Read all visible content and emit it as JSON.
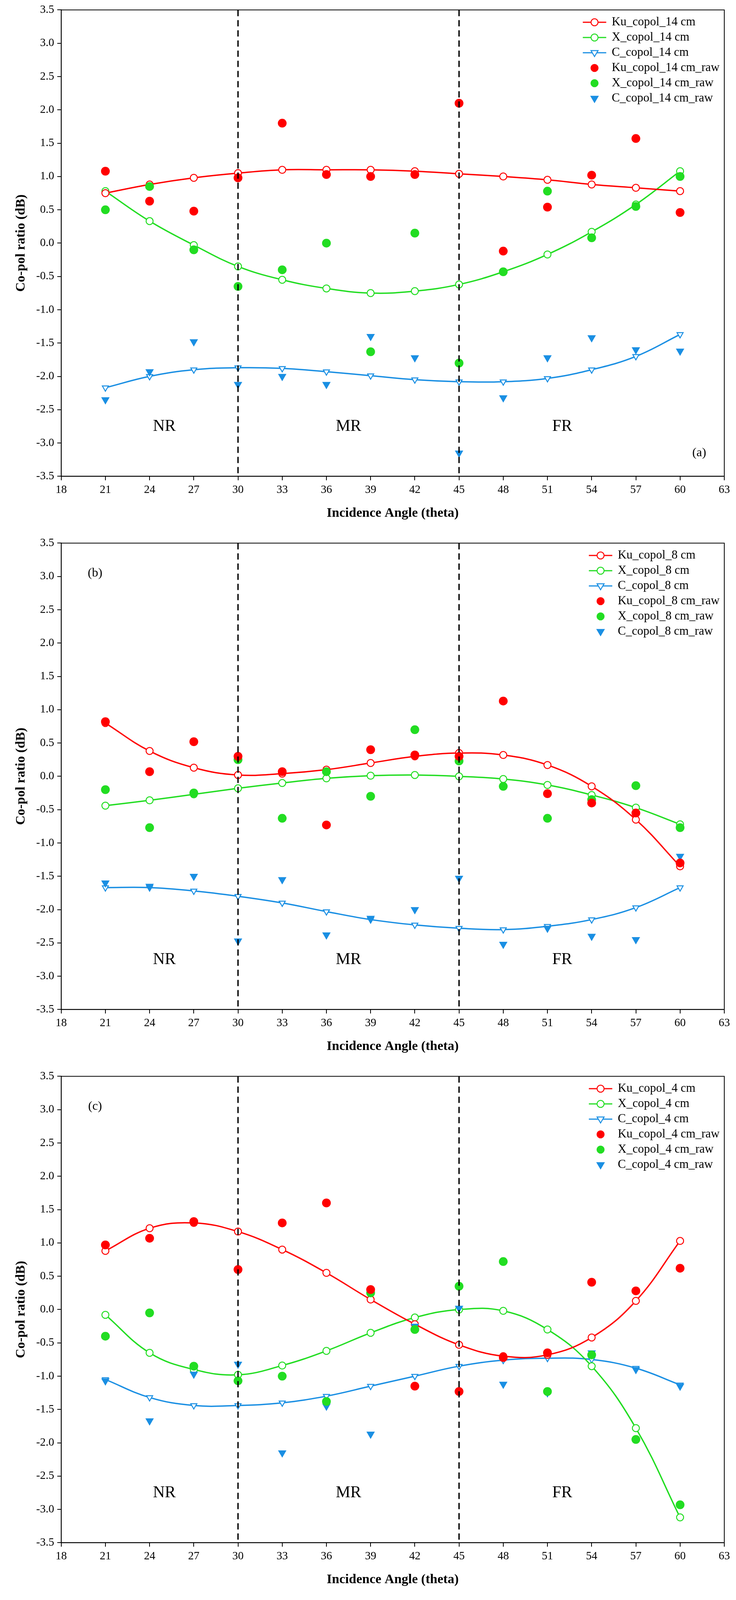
{
  "chart_data": [
    {
      "type": "line",
      "x_label": "Incidence Angle (theta)",
      "y_label": "Co-pol ratio (dB)",
      "x": [
        21,
        24,
        27,
        30,
        33,
        36,
        39,
        42,
        45,
        48,
        51,
        54,
        57,
        60
      ],
      "xlim": [
        18,
        63
      ],
      "xticks": [
        18,
        21,
        24,
        27,
        30,
        33,
        36,
        39,
        42,
        45,
        48,
        51,
        54,
        57,
        60,
        63
      ],
      "ylim": [
        -3.5,
        3.5
      ],
      "yticks": [
        -3.5,
        {
          "value": -3,
          "label": "-3.0"
        },
        -2.5,
        {
          "value": -2,
          "label": "-2.0"
        },
        -1.5,
        {
          "value": -1,
          "label": "-1.0"
        },
        -0.5,
        {
          "value": 0,
          "label": "0.0"
        },
        0.5,
        {
          "value": 1,
          "label": "1.0"
        },
        1.5,
        {
          "value": 2,
          "label": "2.0"
        },
        2.5,
        {
          "value": 3,
          "label": "3.0"
        },
        3.5
      ],
      "grid": false,
      "legend": "upper right",
      "vlines": [
        30,
        45
      ],
      "annotations": [
        {
          "text": "NR",
          "x": 25,
          "y": -2.75
        },
        {
          "text": "MR",
          "x": 37.5,
          "y": -2.75
        },
        {
          "text": "FR",
          "x": 52,
          "y": -2.75
        },
        {
          "text": "(a)",
          "x": 61.3,
          "y": -3.15
        }
      ],
      "series": [
        {
          "name": "Ku_copol_14 cm",
          "type": "line",
          "color": "#ff0000",
          "marker": "open_circle",
          "line_style": "solid",
          "values": [
            0.75,
            0.88,
            0.98,
            1.05,
            1.1,
            1.1,
            1.1,
            1.08,
            1.04,
            1.0,
            0.95,
            0.88,
            0.83,
            0.78
          ]
        },
        {
          "name": "X_copol_14 cm",
          "type": "line",
          "color": "#22dd22",
          "marker": "open_circle",
          "line_style": "solid",
          "values": [
            0.78,
            0.33,
            -0.03,
            -0.35,
            -0.55,
            -0.68,
            -0.75,
            -0.72,
            -0.62,
            -0.43,
            -0.17,
            0.17,
            0.58,
            1.08
          ]
        },
        {
          "name": "C_copol_14 cm",
          "type": "line",
          "color": "#1a8fe3",
          "marker": "open_triangle_down",
          "line_style": "solid",
          "values": [
            -2.17,
            -2.0,
            -1.9,
            -1.87,
            -1.88,
            -1.93,
            -1.99,
            -2.05,
            -2.08,
            -2.08,
            -2.03,
            -1.9,
            -1.7,
            -1.37
          ]
        },
        {
          "name": "Ku_copol_14 cm_raw",
          "type": "scatter",
          "color": "#ff0000",
          "marker": "filled_circle",
          "line_style": "none",
          "values": [
            1.08,
            0.63,
            0.48,
            0.98,
            1.8,
            1.03,
            1.0,
            1.03,
            2.1,
            -0.12,
            0.54,
            1.02,
            1.57,
            0.46
          ]
        },
        {
          "name": "X_copol_14 cm_raw",
          "type": "scatter",
          "color": "#22dd22",
          "marker": "filled_circle",
          "line_style": "none",
          "values": [
            0.5,
            0.85,
            -0.1,
            -0.65,
            -0.4,
            0.0,
            -1.63,
            0.15,
            -1.8,
            -0.43,
            0.78,
            0.08,
            0.55,
            1.0
          ]
        },
        {
          "name": "C_copol_14 cm_raw",
          "type": "scatter",
          "color": "#1a8fe3",
          "marker": "filled_triangle_down",
          "line_style": "none",
          "values": [
            -2.35,
            -1.93,
            -1.48,
            -2.12,
            -2.0,
            -2.12,
            -1.4,
            -1.72,
            -3.15,
            -2.32,
            -1.72,
            -1.42,
            -1.6,
            -1.62
          ]
        }
      ]
    },
    {
      "type": "line",
      "x_label": "Incidence Angle (theta)",
      "y_label": "Co-pol ratio (dB)",
      "x": [
        21,
        24,
        27,
        30,
        33,
        36,
        39,
        42,
        45,
        48,
        51,
        54,
        57,
        60
      ],
      "xlim": [
        18,
        63
      ],
      "xticks": [
        18,
        21,
        24,
        27,
        30,
        33,
        36,
        39,
        42,
        45,
        48,
        51,
        54,
        57,
        60,
        63
      ],
      "ylim": [
        -3.5,
        3.5
      ],
      "yticks": [
        -3.5,
        {
          "value": -3,
          "label": "-3.0"
        },
        -2.5,
        {
          "value": -2,
          "label": "-2.0"
        },
        -1.5,
        {
          "value": -1,
          "label": "-1.0"
        },
        -0.5,
        {
          "value": 0,
          "label": "0.0"
        },
        0.5,
        {
          "value": 1,
          "label": "1.0"
        },
        1.5,
        {
          "value": 2,
          "label": "2.0"
        },
        2.5,
        {
          "value": 3,
          "label": "3.0"
        },
        3.5
      ],
      "grid": false,
      "legend": "upper right",
      "vlines": [
        30,
        45
      ],
      "annotations": [
        {
          "text": "NR",
          "x": 25,
          "y": -2.75
        },
        {
          "text": "MR",
          "x": 37.5,
          "y": -2.75
        },
        {
          "text": "FR",
          "x": 52,
          "y": -2.75
        },
        {
          "text": "(b)",
          "x": 20.3,
          "y": 3.05
        }
      ],
      "series": [
        {
          "name": "Ku_copol_8 cm",
          "type": "line",
          "color": "#ff0000",
          "marker": "open_circle",
          "line_style": "solid",
          "values": [
            0.8,
            0.38,
            0.13,
            0.02,
            0.04,
            0.1,
            0.2,
            0.3,
            0.35,
            0.32,
            0.17,
            -0.15,
            -0.65,
            -1.35
          ]
        },
        {
          "name": "X_copol_8 cm",
          "type": "line",
          "color": "#22dd22",
          "marker": "open_circle",
          "line_style": "solid",
          "values": [
            -0.44,
            -0.36,
            -0.27,
            -0.18,
            -0.1,
            -0.03,
            0.01,
            0.02,
            0.0,
            -0.04,
            -0.13,
            -0.28,
            -0.47,
            -0.72
          ]
        },
        {
          "name": "C_copol_8 cm",
          "type": "line",
          "color": "#1a8fe3",
          "marker": "open_triangle_down",
          "line_style": "solid",
          "values": [
            -1.67,
            -1.67,
            -1.72,
            -1.8,
            -1.9,
            -2.03,
            -2.15,
            -2.23,
            -2.28,
            -2.3,
            -2.25,
            -2.15,
            -1.97,
            -1.67
          ]
        },
        {
          "name": "Ku_copol_8 cm_raw",
          "type": "scatter",
          "color": "#ff0000",
          "marker": "filled_circle",
          "line_style": "none",
          "values": [
            0.82,
            0.07,
            0.52,
            0.3,
            0.07,
            -0.73,
            0.4,
            0.32,
            0.3,
            1.13,
            -0.26,
            -0.4,
            -0.55,
            -1.3
          ]
        },
        {
          "name": "X_copol_8 cm_raw",
          "type": "scatter",
          "color": "#22dd22",
          "marker": "filled_circle",
          "line_style": "none",
          "values": [
            -0.2,
            -0.77,
            -0.25,
            0.25,
            -0.63,
            0.07,
            -0.3,
            0.7,
            0.23,
            -0.15,
            -0.63,
            -0.35,
            -0.14,
            -0.77
          ]
        },
        {
          "name": "C_copol_8 cm_raw",
          "type": "scatter",
          "color": "#1a8fe3",
          "marker": "filled_triangle_down",
          "line_style": "none",
          "values": [
            -1.6,
            -1.65,
            -1.5,
            -2.47,
            -1.55,
            -2.38,
            -2.13,
            -2.0,
            -1.53,
            -2.52,
            -2.28,
            -2.4,
            -2.45,
            -1.2
          ]
        }
      ]
    },
    {
      "type": "line",
      "x_label": "Incidence Angle (theta)",
      "y_label": "Co-pol ratio (dB)",
      "x": [
        21,
        24,
        27,
        30,
        33,
        36,
        39,
        42,
        45,
        48,
        51,
        54,
        57,
        60
      ],
      "xlim": [
        18,
        63
      ],
      "xticks": [
        18,
        21,
        24,
        27,
        30,
        33,
        36,
        39,
        42,
        45,
        48,
        51,
        54,
        57,
        60,
        63
      ],
      "ylim": [
        -3.5,
        3.5
      ],
      "yticks": [
        -3.5,
        {
          "value": -3,
          "label": "-3.0"
        },
        -2.5,
        {
          "value": -2,
          "label": "-2.0"
        },
        -1.5,
        {
          "value": -1,
          "label": "-1.0"
        },
        -0.5,
        {
          "value": 0,
          "label": "0.0"
        },
        0.5,
        {
          "value": 1,
          "label": "1.0"
        },
        1.5,
        {
          "value": 2,
          "label": "2.0"
        },
        2.5,
        {
          "value": 3,
          "label": "3.0"
        },
        3.5
      ],
      "grid": false,
      "legend": "upper right",
      "vlines": [
        30,
        45
      ],
      "annotations": [
        {
          "text": "NR",
          "x": 25,
          "y": -2.75
        },
        {
          "text": "MR",
          "x": 37.5,
          "y": -2.75
        },
        {
          "text": "FR",
          "x": 52,
          "y": -2.75
        },
        {
          "text": "(c)",
          "x": 20.3,
          "y": 3.05
        }
      ],
      "series": [
        {
          "name": "Ku_copol_4 cm",
          "type": "line",
          "color": "#ff0000",
          "marker": "open_circle",
          "line_style": "solid",
          "values": [
            0.88,
            1.22,
            1.3,
            1.17,
            0.9,
            0.55,
            0.15,
            -0.22,
            -0.53,
            -0.7,
            -0.68,
            -0.42,
            0.13,
            1.03
          ]
        },
        {
          "name": "X_copol_4 cm",
          "type": "line",
          "color": "#22dd22",
          "marker": "open_circle",
          "line_style": "solid",
          "values": [
            -0.08,
            -0.65,
            -0.9,
            -0.98,
            -0.84,
            -0.62,
            -0.35,
            -0.12,
            0.0,
            -0.02,
            -0.3,
            -0.85,
            -1.78,
            -3.12
          ]
        },
        {
          "name": "C_copol_4 cm",
          "type": "line",
          "color": "#1a8fe3",
          "marker": "open_triangle_down",
          "line_style": "solid",
          "values": [
            -1.05,
            -1.32,
            -1.44,
            -1.44,
            -1.4,
            -1.3,
            -1.15,
            -1.0,
            -0.85,
            -0.76,
            -0.73,
            -0.75,
            -0.88,
            -1.13
          ]
        },
        {
          "name": "Ku_copol_4 cm_raw",
          "type": "scatter",
          "color": "#ff0000",
          "marker": "filled_circle",
          "line_style": "none",
          "values": [
            0.97,
            1.07,
            1.32,
            0.6,
            1.3,
            1.6,
            0.3,
            -1.15,
            -1.23,
            -0.72,
            -0.65,
            0.41,
            0.28,
            0.62
          ]
        },
        {
          "name": "X_copol_4 cm_raw",
          "type": "scatter",
          "color": "#22dd22",
          "marker": "filled_circle",
          "line_style": "none",
          "values": [
            -0.4,
            -0.05,
            -0.85,
            -1.07,
            -1.0,
            -1.38,
            0.25,
            -0.3,
            0.35,
            0.72,
            -1.23,
            -0.68,
            -1.95,
            -2.93
          ]
        },
        {
          "name": "C_copol_4 cm_raw",
          "type": "scatter",
          "color": "#1a8fe3",
          "marker": "filled_triangle_down",
          "line_style": "none",
          "values": [
            -1.07,
            -1.67,
            -0.97,
            -0.82,
            -2.15,
            -1.45,
            -1.87,
            -0.25,
            0.02,
            -1.12,
            -1.25,
            -0.65,
            -0.9,
            -1.15
          ]
        }
      ]
    }
  ]
}
